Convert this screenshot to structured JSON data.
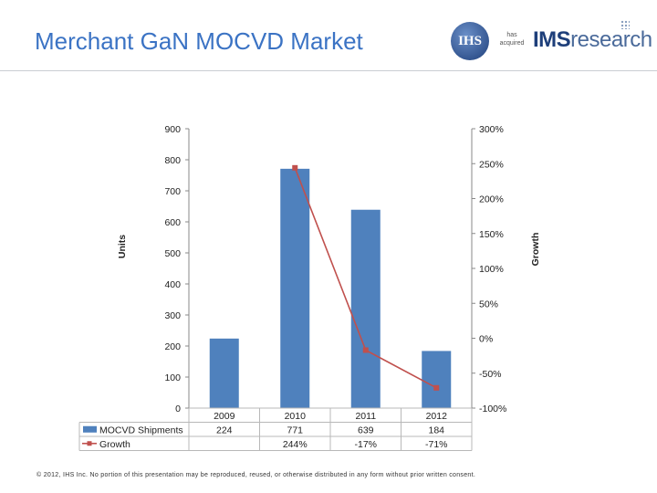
{
  "slide": {
    "title": "Merchant GaN MOCVD Market",
    "copyright": "© 2012, IHS Inc. No portion of this presentation may be reproduced, reused, or otherwise distributed in any form without prior written consent."
  },
  "logos": {
    "ihs": "IHS",
    "has_acquired_1": "has",
    "has_acquired_2": "acquired",
    "ims_bold": "IMS",
    "ims_rest": "research"
  },
  "chart_data": {
    "type": "bar",
    "categories": [
      "2009",
      "2010",
      "2011",
      "2012"
    ],
    "series": [
      {
        "name": "MOCVD Shipments",
        "type": "bar",
        "axis": "left",
        "values": [
          224,
          771,
          639,
          184
        ],
        "labels": [
          "224",
          "771",
          "639",
          "184"
        ],
        "color": "#4f81bd"
      },
      {
        "name": "Growth",
        "type": "line",
        "axis": "right",
        "values": [
          null,
          244,
          -17,
          -71
        ],
        "labels": [
          "",
          "244%",
          "-17%",
          "-71%"
        ],
        "color": "#c0504d"
      }
    ],
    "ylabel": "Units",
    "y2label": "Growth",
    "ylim": [
      0,
      900
    ],
    "y2lim": [
      -100,
      300
    ],
    "yticks": [
      "0",
      "100",
      "200",
      "300",
      "400",
      "500",
      "600",
      "700",
      "800",
      "900"
    ],
    "y2ticks": [
      "-100%",
      "-50%",
      "0%",
      "50%",
      "100%",
      "150%",
      "200%",
      "250%",
      "300%"
    ],
    "grid": false,
    "legend": "data-table"
  }
}
